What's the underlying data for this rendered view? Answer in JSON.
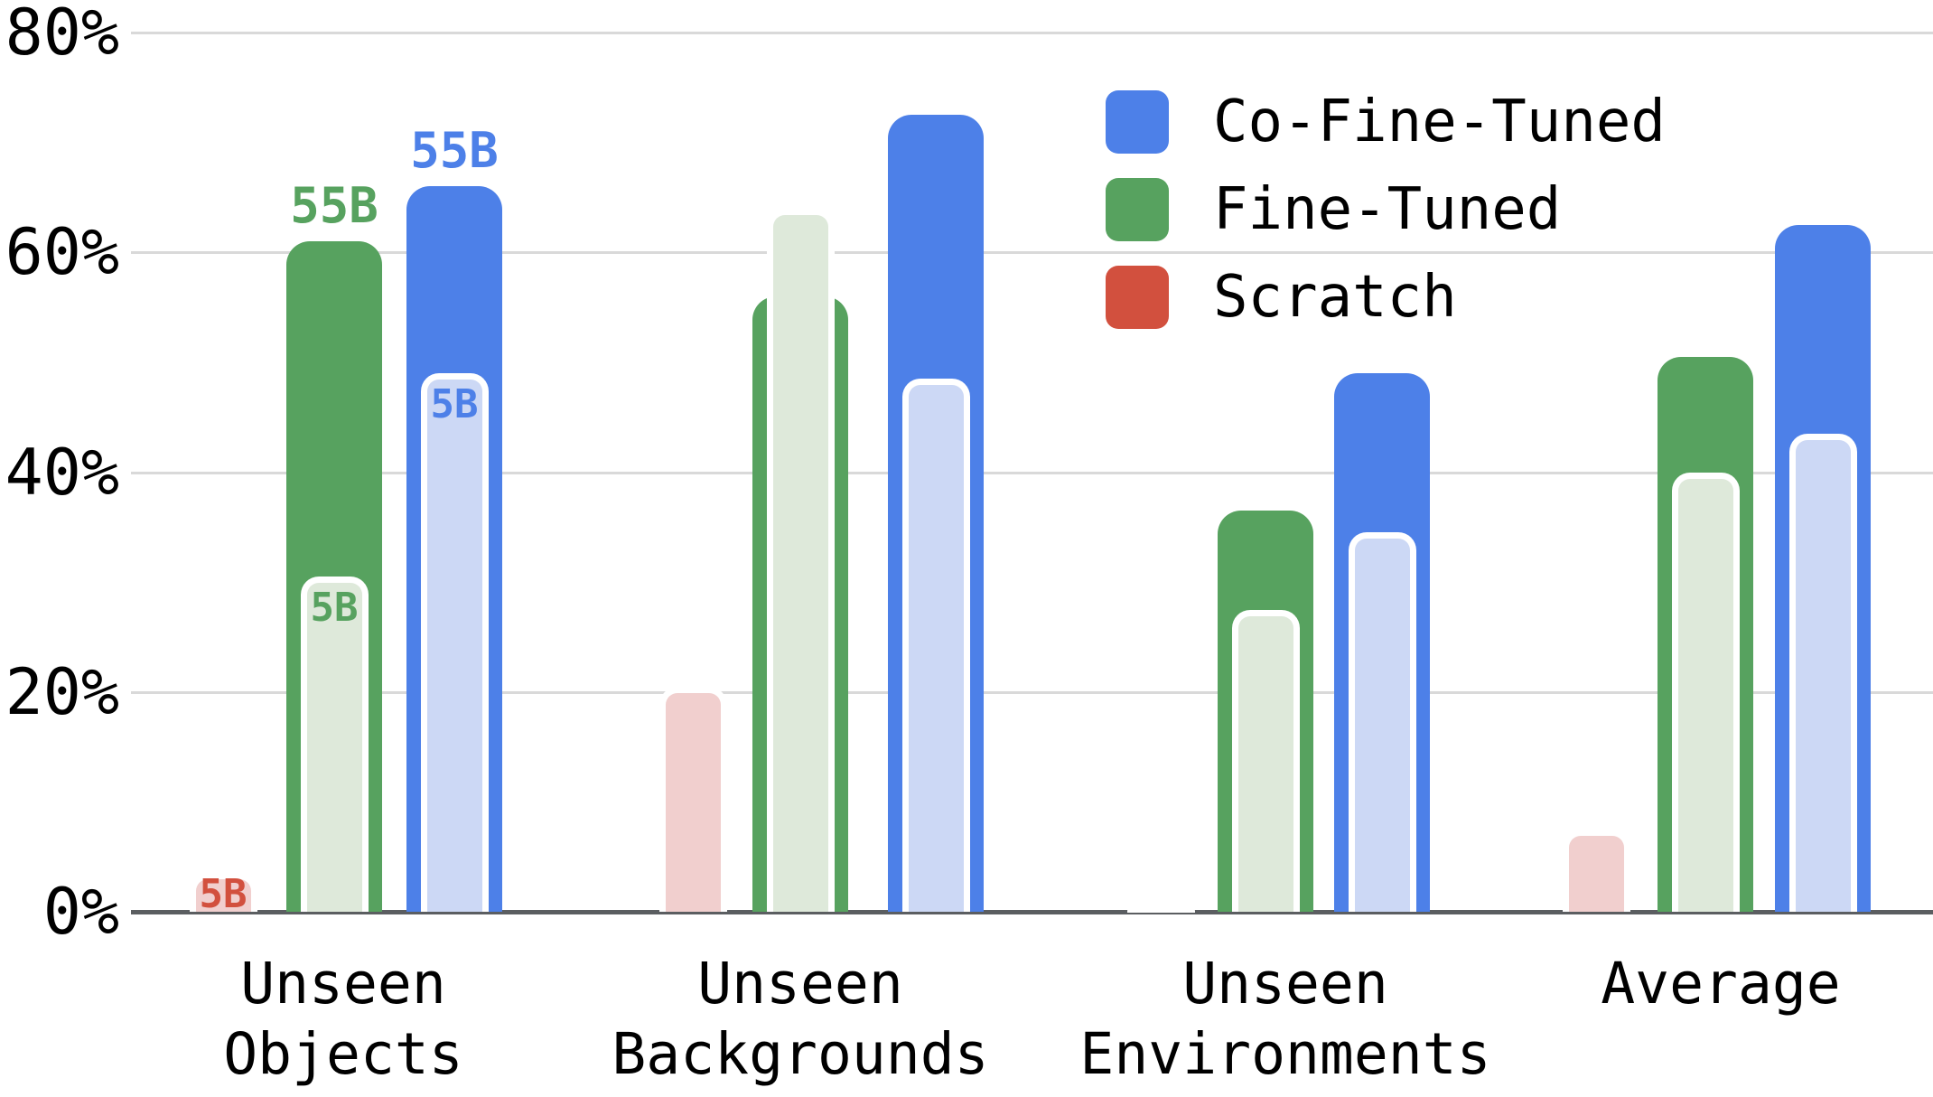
{
  "chart_data": {
    "type": "bar",
    "title": "",
    "xlabel": "",
    "ylabel": "",
    "units": "%",
    "ylim": [
      0,
      80
    ],
    "grid": true,
    "legend_position": "top-right",
    "y_ticks": [
      {
        "label": "80%",
        "value": 80
      },
      {
        "label": "60%",
        "value": 60
      },
      {
        "label": "40%",
        "value": 40
      },
      {
        "label": "20%",
        "value": 20
      },
      {
        "label": "0%",
        "value": 0
      }
    ],
    "model_sizes": [
      "5B",
      "55B"
    ],
    "categories": [
      "Unseen Objects",
      "Unseen Backgrounds",
      "Unseen Environments",
      "Average"
    ],
    "legend": [
      {
        "label": "Co-Fine-Tuned",
        "series": "co_fine_tuned",
        "color": "#4d80e8"
      },
      {
        "label": "Fine-Tuned",
        "series": "fine_tuned",
        "color": "#57a25f"
      },
      {
        "label": "Scratch",
        "series": "scratch",
        "color": "#d2503e"
      }
    ],
    "groups": [
      {
        "category": "Unseen Objects",
        "label_lines": [
          "Unseen",
          "Objects"
        ],
        "bars": {
          "scratch": {
            "b55": 0,
            "b5": 3.5,
            "b55_label": null,
            "b5_label": "5B"
          },
          "fine_tuned": {
            "b55": 61,
            "b5": 30.5,
            "b55_label": "55B",
            "b5_label": "5B"
          },
          "co_fine_tuned": {
            "b55": 66,
            "b5": 49,
            "b55_label": "55B",
            "b5_label": "5B"
          }
        }
      },
      {
        "category": "Unseen Backgrounds",
        "label_lines": [
          "Unseen",
          "Backgrounds"
        ],
        "bars": {
          "scratch": {
            "b55": 0,
            "b5": 20.5,
            "b55_label": null,
            "b5_label": null
          },
          "fine_tuned": {
            "b55": 56,
            "b5": 64,
            "b55_label": null,
            "b5_label": null
          },
          "co_fine_tuned": {
            "b55": 72.5,
            "b5": 48.5,
            "b55_label": null,
            "b5_label": null
          }
        }
      },
      {
        "category": "Unseen Environments",
        "label_lines": [
          "Unseen",
          "Environments"
        ],
        "bars": {
          "scratch": {
            "b55": 0,
            "b5": 0.5,
            "b55_label": null,
            "b5_label": null
          },
          "fine_tuned": {
            "b55": 36.5,
            "b5": 27.5,
            "b55_label": null,
            "b5_label": null
          },
          "co_fine_tuned": {
            "b55": 49,
            "b5": 34.5,
            "b55_label": null,
            "b5_label": null
          }
        }
      },
      {
        "category": "Average",
        "label_lines": [
          "Average"
        ],
        "bars": {
          "scratch": {
            "b55": 0,
            "b5": 7.5,
            "b55_label": null,
            "b5_label": null
          },
          "fine_tuned": {
            "b55": 50.5,
            "b5": 40,
            "b55_label": null,
            "b5_label": null
          },
          "co_fine_tuned": {
            "b55": 62.5,
            "b5": 43.5,
            "b55_label": null,
            "b5_label": null
          }
        }
      }
    ]
  },
  "colors": {
    "co_fine_tuned_dark": "#4d80e8",
    "co_fine_tuned_light": "#ccd8f5",
    "fine_tuned_dark": "#57a25f",
    "fine_tuned_light": "#dee9da",
    "scratch_dark": "#d2503e",
    "scratch_light": "#f1cfce",
    "gridline": "#d9d9d9",
    "axis_line": "#5b5e61",
    "text": "#000000",
    "inner_bar_border": "#ffffff"
  }
}
